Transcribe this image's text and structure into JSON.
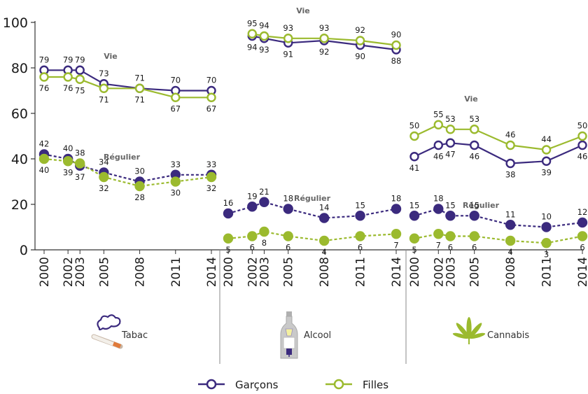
{
  "colors": {
    "garcons": "#3b2a7e",
    "filles": "#9bba2e",
    "axis": "#333333"
  },
  "y_axis": {
    "min": 0,
    "max": 100,
    "ticks": [
      "0",
      "20",
      "40",
      "60",
      "80",
      "100"
    ]
  },
  "legend": {
    "garcons": "Garçons",
    "filles": "Filles"
  },
  "chart_data": [
    {
      "type": "line",
      "panel": "Tabac",
      "icon": "cigarette-icon",
      "x": [
        2000,
        2002,
        2003,
        2005,
        2008,
        2011,
        2014
      ],
      "ylim": [
        0,
        100
      ],
      "groups": [
        {
          "label": "Vie",
          "style": "solid",
          "series": [
            {
              "name": "Garçons",
              "values": [
                79,
                79,
                79,
                73,
                71,
                70,
                70
              ]
            },
            {
              "name": "Filles",
              "values": [
                76,
                76,
                75,
                71,
                71,
                67,
                67
              ]
            }
          ]
        },
        {
          "label": "Régulier",
          "style": "dashed",
          "series": [
            {
              "name": "Garçons",
              "values": [
                42,
                40,
                37,
                34,
                30,
                33,
                33
              ]
            },
            {
              "name": "Filles",
              "values": [
                40,
                39,
                38,
                32,
                28,
                30,
                32
              ]
            }
          ]
        }
      ]
    },
    {
      "type": "line",
      "panel": "Alcool",
      "icon": "bottle-icon",
      "x": [
        2000,
        2002,
        2003,
        2005,
        2008,
        2011,
        2014
      ],
      "ylim": [
        0,
        100
      ],
      "groups": [
        {
          "label": "Vie",
          "style": "solid",
          "series": [
            {
              "name": "Garçons",
              "values": [
                94,
                93,
                91,
                92,
                90,
                88
              ],
              "x": [
                2002,
                2003,
                2005,
                2008,
                2011,
                2014
              ]
            },
            {
              "name": "Filles",
              "values": [
                95,
                94,
                93,
                93,
                92,
                90
              ],
              "x": [
                2002,
                2003,
                2005,
                2008,
                2011,
                2014
              ]
            }
          ]
        },
        {
          "label": "Régulier",
          "style": "dashed",
          "series": [
            {
              "name": "Garçons",
              "values": [
                16,
                19,
                21,
                18,
                14,
                15,
                18
              ]
            },
            {
              "name": "Filles",
              "values": [
                5,
                6,
                8,
                6,
                4,
                6,
                7
              ]
            }
          ]
        }
      ]
    },
    {
      "type": "line",
      "panel": "Cannabis",
      "icon": "cannabis-leaf-icon",
      "x": [
        2000,
        2002,
        2003,
        2005,
        2008,
        2011,
        2014
      ],
      "ylim": [
        0,
        100
      ],
      "groups": [
        {
          "label": "Vie",
          "style": "solid",
          "series": [
            {
              "name": "Garçons",
              "values": [
                41,
                46,
                47,
                46,
                38,
                39,
                46
              ]
            },
            {
              "name": "Filles",
              "values": [
                50,
                55,
                53,
                53,
                46,
                44,
                50
              ]
            }
          ]
        },
        {
          "label": "Régulier",
          "style": "dashed",
          "series": [
            {
              "name": "Garçons",
              "values": [
                15,
                18,
                15,
                15,
                11,
                10,
                12
              ]
            },
            {
              "name": "Filles",
              "values": [
                5,
                7,
                6,
                6,
                4,
                3,
                6
              ]
            }
          ]
        }
      ]
    }
  ]
}
